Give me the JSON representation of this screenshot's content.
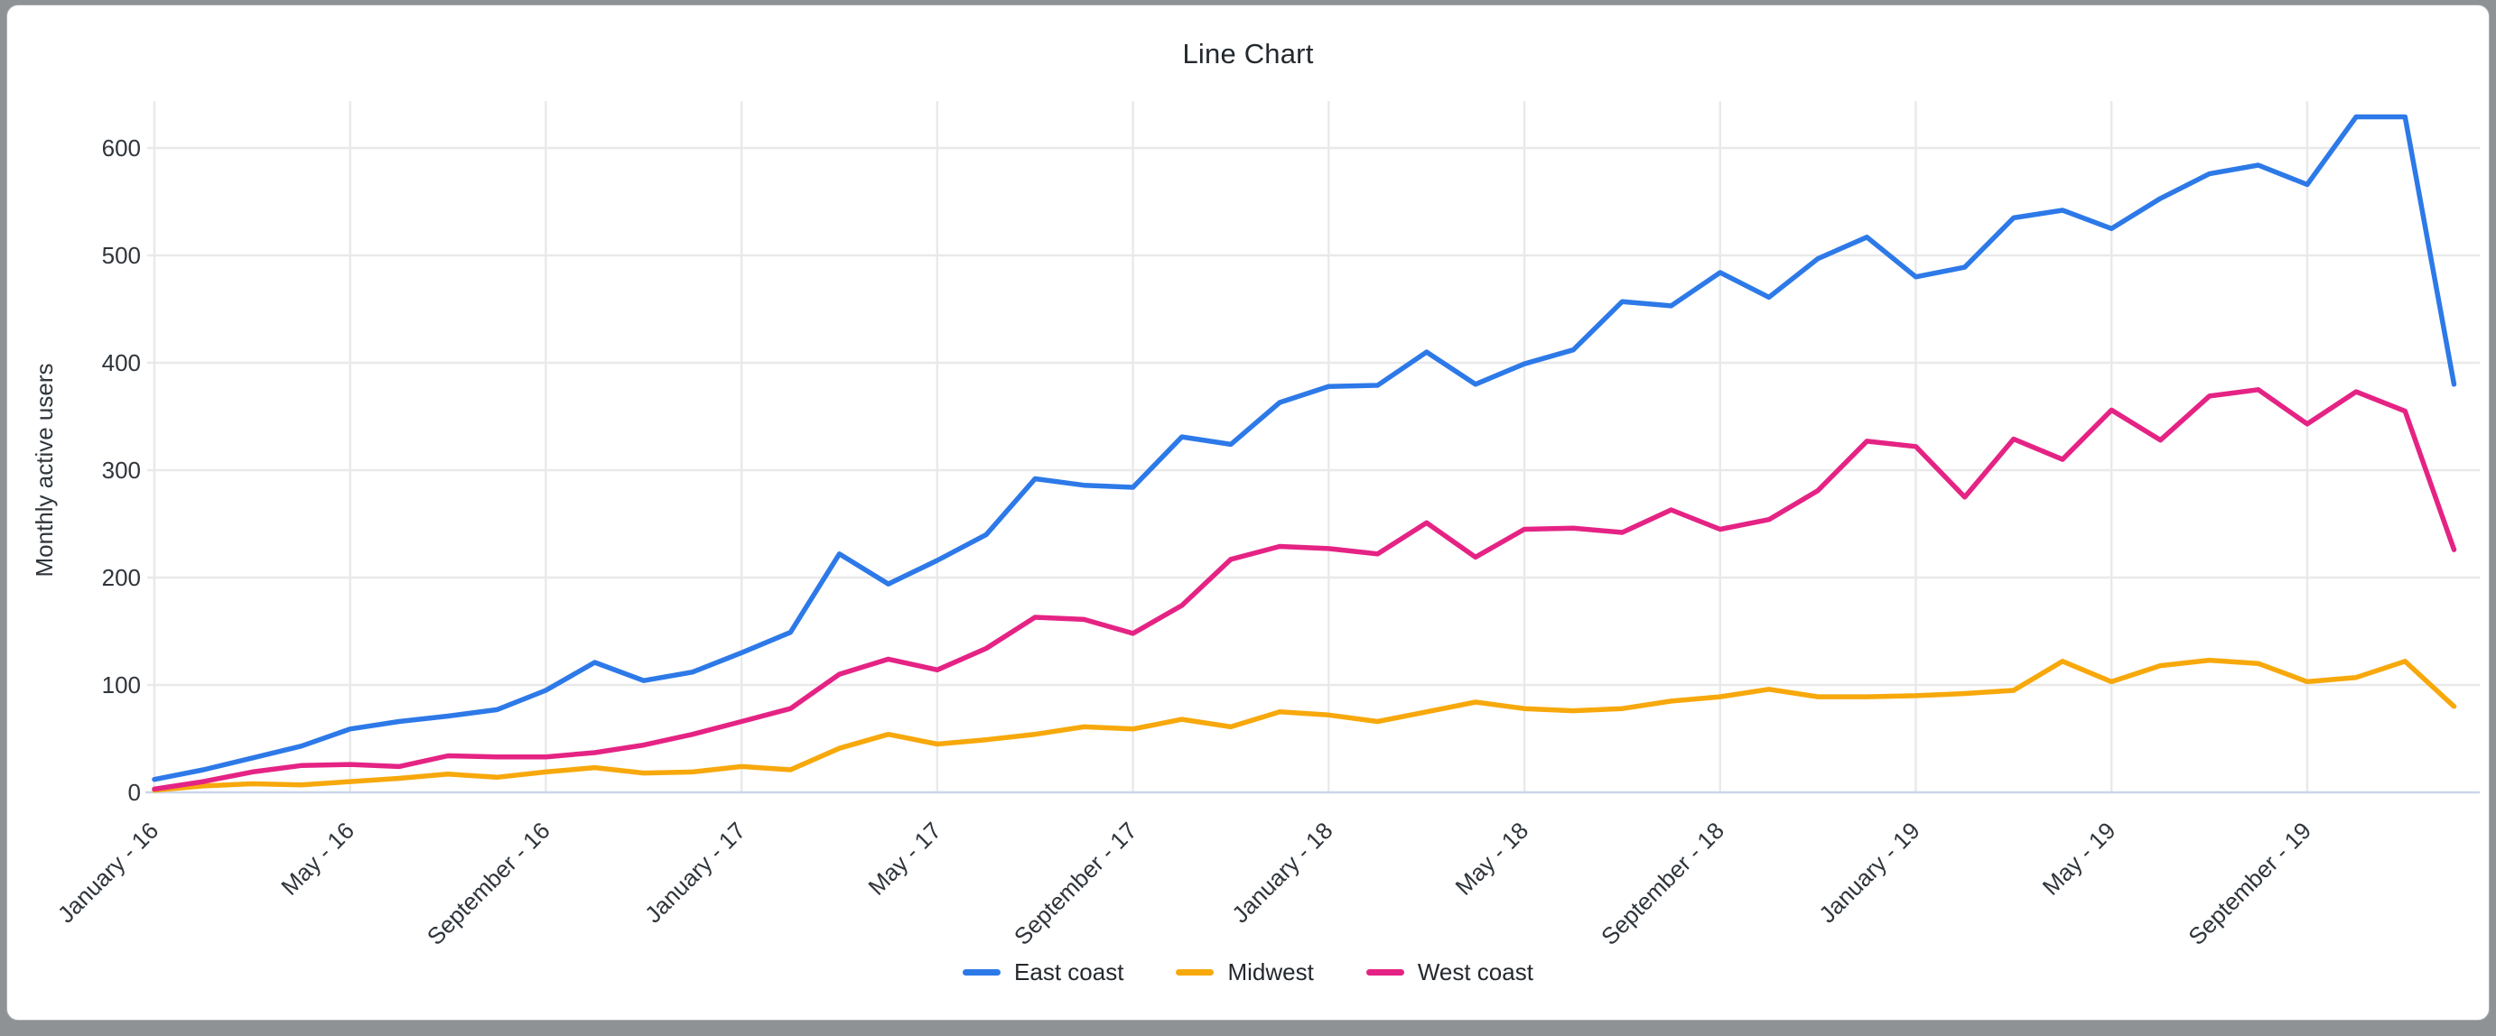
{
  "frame": {
    "background_color": "#8f9295",
    "card_color": "#ffffff"
  },
  "chart_data": {
    "type": "line",
    "title": "Line Chart",
    "xlabel": "",
    "ylabel": "Monthly active users",
    "ylim": [
      0,
      600
    ],
    "y_ticks": [
      0,
      100,
      200,
      300,
      400,
      500,
      600
    ],
    "n_points": 48,
    "x_tick_indices": [
      0,
      4,
      8,
      12,
      16,
      20,
      24,
      28,
      32,
      36,
      40,
      44
    ],
    "x_tick_labels": [
      "January - 16",
      "May - 16",
      "September - 16",
      "January - 17",
      "May - 17",
      "September - 17",
      "January - 18",
      "May - 18",
      "September - 18",
      "January - 19",
      "May - 19",
      "September - 19"
    ],
    "grid": true,
    "legend_position": "bottom",
    "colors": {
      "grid_line": "#e9e9e9",
      "baseline": "#ccd5e9",
      "tick_text": "#2f353b",
      "axis_title_text": "#2f353b"
    },
    "series": [
      {
        "name": "East coast",
        "color": "#2d79e8",
        "values": [
          12,
          21,
          32,
          43,
          59,
          66,
          71,
          77,
          95,
          121,
          104,
          112,
          130,
          149,
          222,
          194,
          216,
          240,
          292,
          286,
          284,
          331,
          324,
          363,
          378,
          379,
          410,
          380,
          399,
          412,
          457,
          453,
          484,
          461,
          497,
          517,
          480,
          489,
          535,
          542,
          525,
          553,
          576,
          584,
          566,
          629,
          629,
          380
        ]
      },
      {
        "name": "Midwest",
        "color": "#f7a80b",
        "values": [
          2,
          6,
          8,
          7,
          10,
          13,
          17,
          14,
          19,
          23,
          18,
          19,
          24,
          21,
          41,
          54,
          45,
          49,
          54,
          61,
          59,
          68,
          61,
          75,
          72,
          66,
          75,
          84,
          78,
          76,
          78,
          85,
          89,
          96,
          89,
          89,
          90,
          92,
          95,
          122,
          103,
          118,
          123,
          120,
          103,
          107,
          122,
          80
        ]
      },
      {
        "name": "West coast",
        "color": "#e52384",
        "values": [
          3,
          10,
          19,
          25,
          26,
          24,
          34,
          33,
          33,
          37,
          44,
          54,
          66,
          78,
          110,
          124,
          114,
          134,
          163,
          161,
          148,
          174,
          217,
          229,
          227,
          222,
          251,
          219,
          245,
          246,
          242,
          263,
          245,
          254,
          281,
          327,
          322,
          275,
          329,
          310,
          356,
          328,
          369,
          375,
          343,
          373,
          355,
          226
        ]
      }
    ]
  }
}
